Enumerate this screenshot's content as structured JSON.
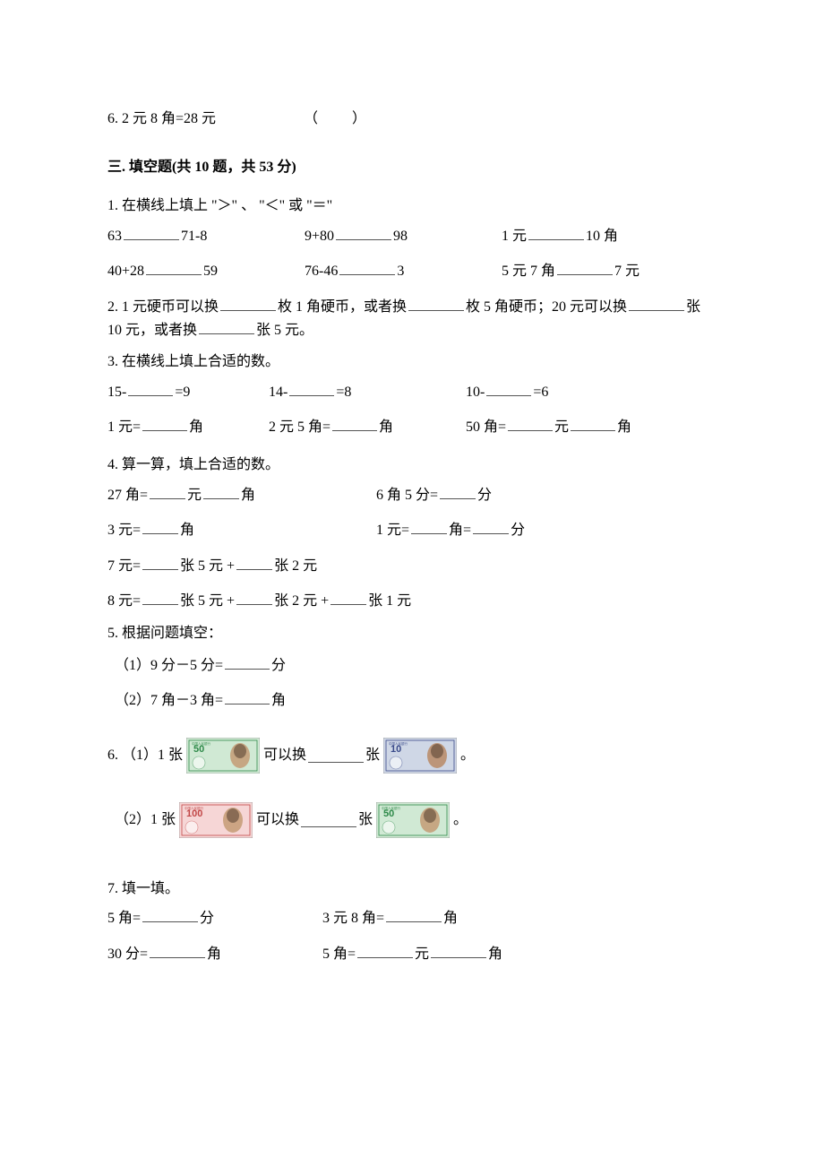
{
  "q6tf": {
    "text": "6. 2 元 8 角=28 元",
    "paren": "（　　）"
  },
  "section3_title": "三. 填空题(共 10 题，共 53 分)",
  "q1": {
    "prompt": "1. 在横线上填上 \"＞\" 、 \"＜\" 或 \"＝\"",
    "r1c1a": "63",
    "r1c1b": "71-8",
    "r1c2a": "9+80",
    "r1c2b": "98",
    "r1c3a": "1 元",
    "r1c3b": "10 角",
    "r2c1a": "40+28",
    "r2c1b": "59",
    "r2c2a": "76-46",
    "r2c2b": "3",
    "r2c3a": "5 元 7 角",
    "r2c3b": "7 元"
  },
  "q2": {
    "prefix": "2. 1 元硬币可以换",
    "mid1": "枚 1 角硬币，或者换",
    "mid2": "枚 5 角硬币；20 元可以换",
    "mid3": "张 10 元，或者换",
    "suffix": "张 5 元。"
  },
  "q3": {
    "prompt": "3. 在横线上填上合适的数。",
    "r1c1a": "15-",
    "r1c1b": "=9",
    "r1c2a": "14-",
    "r1c2b": "=8",
    "r1c3a": "10-",
    "r1c3b": "=6",
    "r2c1a": "1 元=",
    "r2c1b": "角",
    "r2c2a": "2 元 5 角=",
    "r2c2b": "角",
    "r2c3a": "50 角=",
    "r2c3b": "元",
    "r2c3c": "角"
  },
  "q4": {
    "prompt": "4. 算一算，填上合适的数。",
    "l1a": "27 角=",
    "l1b": "元",
    "l1c": "角",
    "l1ra": "6 角 5 分=",
    "l1rb": "分",
    "l2a": "3 元=",
    "l2b": "角",
    "l2ra": "1 元=",
    "l2rb": "角=",
    "l2rc": "分",
    "l3a": "7 元=",
    "l3b": "张 5 元 +",
    "l3c": "张 2 元",
    "l4a": "8 元=",
    "l4b": "张 5 元 +",
    "l4c": "张 2 元 +",
    "l4d": "张 1 元"
  },
  "q5": {
    "prompt": "5. 根据问题填空：",
    "s1a": "（1）9 分－5 分=",
    "s1b": "分",
    "s2a": "（2）7 角－3 角=",
    "s2b": "角"
  },
  "q6": {
    "s1a": "6. （1）1 张",
    "s1mid": "可以换",
    "s1post": "张",
    "s1end": "。",
    "s2a": "（2）1 张",
    "s2mid": "可以换",
    "s2post": "张",
    "s2end": "。",
    "bn50": {
      "value": "50",
      "bg": "#d0e9d4",
      "accent": "#2f8a4a",
      "portrait": "#c49b74"
    },
    "bn10": {
      "value": "10",
      "bg": "#cfd7e6",
      "accent": "#3a4a8a",
      "portrait": "#b88a65"
    },
    "bn100": {
      "value": "100",
      "bg": "#f6d6d6",
      "accent": "#c24848",
      "portrait": "#c49b74"
    },
    "bn50b": {
      "value": "50",
      "bg": "#d0e9d4",
      "accent": "#2f8a4a",
      "portrait": "#c49b74"
    }
  },
  "q7": {
    "prompt": "7. 填一填。",
    "r1c1a": "5 角=",
    "r1c1b": "分",
    "r1c2a": "3 元 8 角=",
    "r1c2b": "角",
    "r2c1a": "30 分=",
    "r2c1b": "角",
    "r2c2a": "5 角=",
    "r2c2b": "元",
    "r2c2c": "角"
  }
}
